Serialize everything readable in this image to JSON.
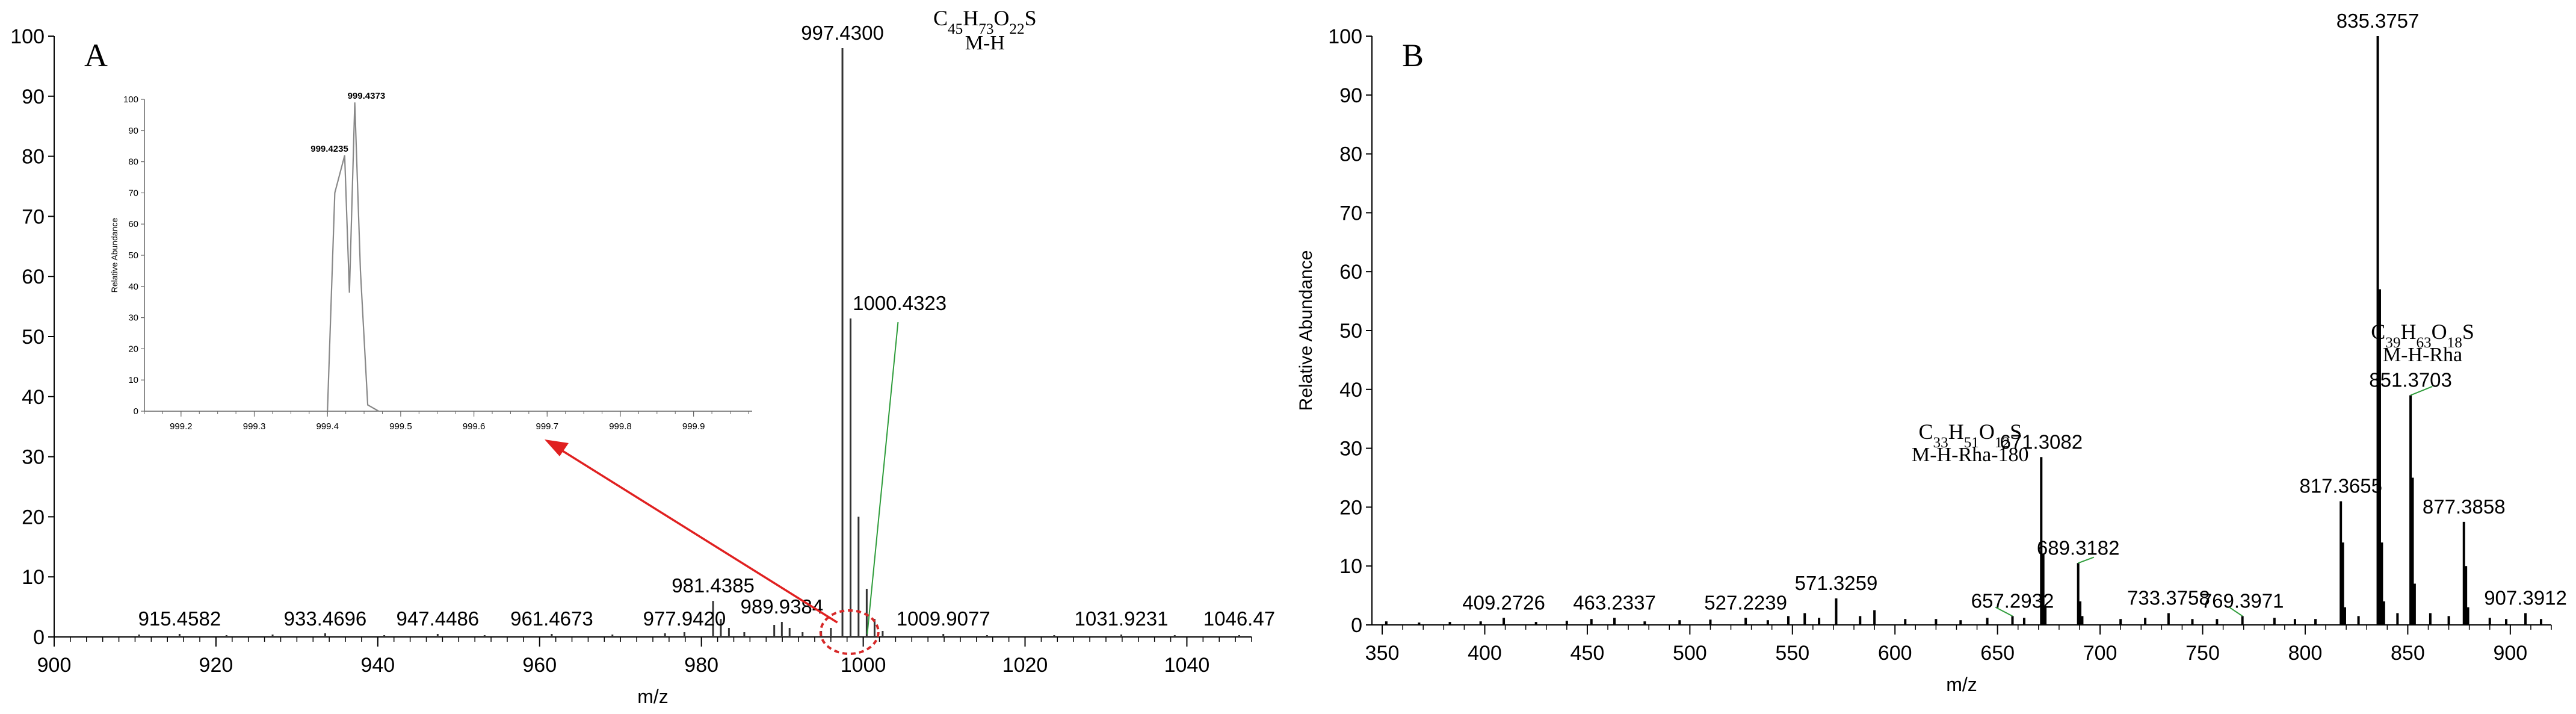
{
  "chart_data": [
    {
      "type": "bar",
      "panel_label": "A",
      "xlabel": "m/z",
      "ylabel": "",
      "xlim": [
        900,
        1048
      ],
      "ylim": [
        0,
        100
      ],
      "xticks": [
        900,
        920,
        940,
        960,
        980,
        1000,
        1020,
        1040
      ],
      "yticks": [
        0,
        10,
        20,
        30,
        40,
        50,
        60,
        70,
        80,
        90,
        100
      ],
      "formula_annotation": {
        "formula": "C45H73O22S",
        "formula_html": "C<tspan baseline-shift=\"sub\" font-size=\"70%\">45</tspan>H<tspan baseline-shift=\"sub\" font-size=\"70%\">73</tspan>O<tspan baseline-shift=\"sub\" font-size=\"70%\">22</tspan>S",
        "ion": "M-H",
        "at_x": 1005
      },
      "peaks": [
        {
          "x": 910.5,
          "y": 0.4
        },
        {
          "x": 915.5,
          "y": 0.5
        },
        {
          "x": 921.3,
          "y": 0.3
        },
        {
          "x": 927.0,
          "y": 0.4
        },
        {
          "x": 933.5,
          "y": 0.6
        },
        {
          "x": 940.8,
          "y": 0.3
        },
        {
          "x": 947.4,
          "y": 0.5
        },
        {
          "x": 953.2,
          "y": 0.3
        },
        {
          "x": 961.5,
          "y": 0.5
        },
        {
          "x": 969.0,
          "y": 0.4
        },
        {
          "x": 975.5,
          "y": 0.6
        },
        {
          "x": 977.9,
          "y": 0.8
        },
        {
          "x": 981.44,
          "y": 6.0
        },
        {
          "x": 982.4,
          "y": 3.0
        },
        {
          "x": 983.4,
          "y": 1.5
        },
        {
          "x": 985.3,
          "y": 0.8
        },
        {
          "x": 989.0,
          "y": 2.0
        },
        {
          "x": 989.94,
          "y": 2.5
        },
        {
          "x": 990.9,
          "y": 1.5
        },
        {
          "x": 992.5,
          "y": 0.8
        },
        {
          "x": 994.8,
          "y": 1.0
        },
        {
          "x": 996.0,
          "y": 1.5
        },
        {
          "x": 997.43,
          "y": 98
        },
        {
          "x": 998.43,
          "y": 53
        },
        {
          "x": 999.42,
          "y": 20
        },
        {
          "x": 1000.43,
          "y": 8
        },
        {
          "x": 1001.4,
          "y": 3
        },
        {
          "x": 1002.4,
          "y": 1.0
        },
        {
          "x": 1009.9,
          "y": 0.5
        },
        {
          "x": 1015.3,
          "y": 0.3
        },
        {
          "x": 1023.6,
          "y": 0.3
        },
        {
          "x": 1031.9,
          "y": 0.4
        },
        {
          "x": 1038.5,
          "y": 0.3
        },
        {
          "x": 1046.47,
          "y": 0.3
        }
      ],
      "labels": [
        {
          "text": "997.4300",
          "x": 997.43,
          "y": 98
        },
        {
          "text": "1000.4323",
          "x": 1004.5,
          "y": 53
        },
        {
          "text": "981.4385",
          "x": 981.44,
          "y": 6.0
        },
        {
          "text": "989.9384",
          "x": 989.94,
          "y": 2.5
        },
        {
          "text": "915.4582",
          "x": 915.5,
          "y": 0.5
        },
        {
          "text": "933.4696",
          "x": 933.5,
          "y": 0.5
        },
        {
          "text": "947.4486",
          "x": 947.4,
          "y": 0.5
        },
        {
          "text": "961.4673",
          "x": 961.5,
          "y": 0.5
        },
        {
          "text": "977.9420",
          "x": 977.9,
          "y": 0.5
        },
        {
          "text": "1009.9077",
          "x": 1009.9,
          "y": 0.5
        },
        {
          "text": "1031.9231",
          "x": 1031.9,
          "y": 0.5
        },
        {
          "text": "1046.47",
          "x": 1046.47,
          "y": 0.5
        }
      ],
      "inset": {
        "type": "line",
        "ylabel": "Relative Abundance",
        "xlim": [
          999.15,
          999.98
        ],
        "ylim": [
          0,
          100
        ],
        "xticks": [
          999.2,
          999.3,
          999.4,
          999.5,
          999.6,
          999.7,
          999.8,
          999.9
        ],
        "yticks": [
          0,
          10,
          20,
          30,
          40,
          50,
          60,
          70,
          80,
          90,
          100
        ],
        "x": [
          999.4,
          999.41,
          999.4235,
          999.43,
          999.4373,
          999.445,
          999.455,
          999.47
        ],
        "y": [
          0,
          70,
          82,
          38,
          99,
          45,
          2,
          0
        ],
        "labels": [
          {
            "text": "999.4235",
            "x": 999.4235,
            "y": 82
          },
          {
            "text": "999.4373",
            "x": 999.4373,
            "y": 99
          }
        ]
      }
    },
    {
      "type": "bar",
      "panel_label": "B",
      "xlabel": "m/z",
      "ylabel": "Relative Abundance",
      "xlim": [
        345,
        920
      ],
      "ylim": [
        0,
        100
      ],
      "xticks": [
        350,
        400,
        450,
        500,
        550,
        600,
        650,
        700,
        750,
        800,
        850,
        900
      ],
      "yticks": [
        0,
        10,
        20,
        30,
        40,
        50,
        60,
        70,
        80,
        90,
        100
      ],
      "peaks": [
        {
          "x": 352,
          "y": 0.6
        },
        {
          "x": 368,
          "y": 0.4
        },
        {
          "x": 383,
          "y": 0.5
        },
        {
          "x": 398,
          "y": 0.6
        },
        {
          "x": 409.27,
          "y": 1.2
        },
        {
          "x": 425,
          "y": 0.5
        },
        {
          "x": 440,
          "y": 0.7
        },
        {
          "x": 452,
          "y": 1.0
        },
        {
          "x": 463.23,
          "y": 1.2
        },
        {
          "x": 478,
          "y": 0.6
        },
        {
          "x": 495,
          "y": 0.8
        },
        {
          "x": 510,
          "y": 0.9
        },
        {
          "x": 527.22,
          "y": 1.2
        },
        {
          "x": 538,
          "y": 0.8
        },
        {
          "x": 548,
          "y": 1.5
        },
        {
          "x": 556,
          "y": 2.0
        },
        {
          "x": 563,
          "y": 1.2
        },
        {
          "x": 571.33,
          "y": 4.5
        },
        {
          "x": 583,
          "y": 1.5
        },
        {
          "x": 590,
          "y": 2.5
        },
        {
          "x": 605,
          "y": 1.0
        },
        {
          "x": 620,
          "y": 1.0
        },
        {
          "x": 632,
          "y": 0.8
        },
        {
          "x": 645,
          "y": 1.2
        },
        {
          "x": 657.29,
          "y": 1.5
        },
        {
          "x": 663,
          "y": 1.2
        },
        {
          "x": 671.31,
          "y": 28.5
        },
        {
          "x": 672.3,
          "y": 12
        },
        {
          "x": 673.3,
          "y": 3
        },
        {
          "x": 689.32,
          "y": 10.5
        },
        {
          "x": 690.3,
          "y": 4
        },
        {
          "x": 691.3,
          "y": 1.5
        },
        {
          "x": 710,
          "y": 1.0
        },
        {
          "x": 722,
          "y": 1.2
        },
        {
          "x": 733.38,
          "y": 2.0
        },
        {
          "x": 745,
          "y": 1.0
        },
        {
          "x": 757,
          "y": 1.0
        },
        {
          "x": 769.4,
          "y": 1.5
        },
        {
          "x": 785,
          "y": 1.2
        },
        {
          "x": 795,
          "y": 1.0
        },
        {
          "x": 805,
          "y": 1.0
        },
        {
          "x": 817.37,
          "y": 21
        },
        {
          "x": 818.37,
          "y": 14
        },
        {
          "x": 819.37,
          "y": 3
        },
        {
          "x": 826,
          "y": 1.5
        },
        {
          "x": 835.38,
          "y": 100
        },
        {
          "x": 836.38,
          "y": 57
        },
        {
          "x": 837.38,
          "y": 14
        },
        {
          "x": 838.38,
          "y": 4
        },
        {
          "x": 845,
          "y": 2
        },
        {
          "x": 851.37,
          "y": 39
        },
        {
          "x": 852.37,
          "y": 25
        },
        {
          "x": 853.37,
          "y": 7
        },
        {
          "x": 861,
          "y": 2
        },
        {
          "x": 870,
          "y": 1.5
        },
        {
          "x": 877.39,
          "y": 17.5
        },
        {
          "x": 878.39,
          "y": 10
        },
        {
          "x": 879.39,
          "y": 3
        },
        {
          "x": 890,
          "y": 1.2
        },
        {
          "x": 898,
          "y": 1.0
        },
        {
          "x": 907.39,
          "y": 2.0
        },
        {
          "x": 915,
          "y": 1.0
        }
      ],
      "labels": [
        {
          "text": "835.3757",
          "x": 835.38,
          "y": 100
        },
        {
          "text": "851.3703",
          "x": 851.37,
          "y": 39
        },
        {
          "text": "877.3858",
          "x": 877.39,
          "y": 17.5
        },
        {
          "text": "817.3655",
          "x": 817.37,
          "y": 21
        },
        {
          "text": "671.3082",
          "x": 671.31,
          "y": 28.5
        },
        {
          "text": "689.3182",
          "x": 689.32,
          "y": 10.5
        },
        {
          "text": "571.3259",
          "x": 571.33,
          "y": 4.5
        },
        {
          "text": "409.2726",
          "x": 409.27,
          "y": 1.2
        },
        {
          "text": "463.2337",
          "x": 463.23,
          "y": 1.2
        },
        {
          "text": "527.2239",
          "x": 527.22,
          "y": 1.2
        },
        {
          "text": "657.2932",
          "x": 657.29,
          "y": 1.5
        },
        {
          "text": "733.3758",
          "x": 733.38,
          "y": 2.0
        },
        {
          "text": "769.3971",
          "x": 769.4,
          "y": 1.5
        },
        {
          "text": "907.3912",
          "x": 907.39,
          "y": 2.0
        }
      ],
      "annotations": [
        {
          "formula": "C39H63O18S",
          "formula_html": "C<tspan baseline-shift=\"sub\" font-size=\"70%\">39</tspan>H<tspan baseline-shift=\"sub\" font-size=\"70%\">63</tspan>O<tspan baseline-shift=\"sub\" font-size=\"70%\">18</tspan>S",
          "ion": "M-H-Rha",
          "at_x": 851.37
        },
        {
          "formula": "C33H51O12S",
          "formula_html": "C<tspan baseline-shift=\"sub\" font-size=\"70%\">33</tspan>H<tspan baseline-shift=\"sub\" font-size=\"70%\">51</tspan>O<tspan baseline-shift=\"sub\" font-size=\"70%\">12</tspan>S",
          "ion": "M-H-Rha-180",
          "at_x": 671.31
        }
      ]
    }
  ]
}
